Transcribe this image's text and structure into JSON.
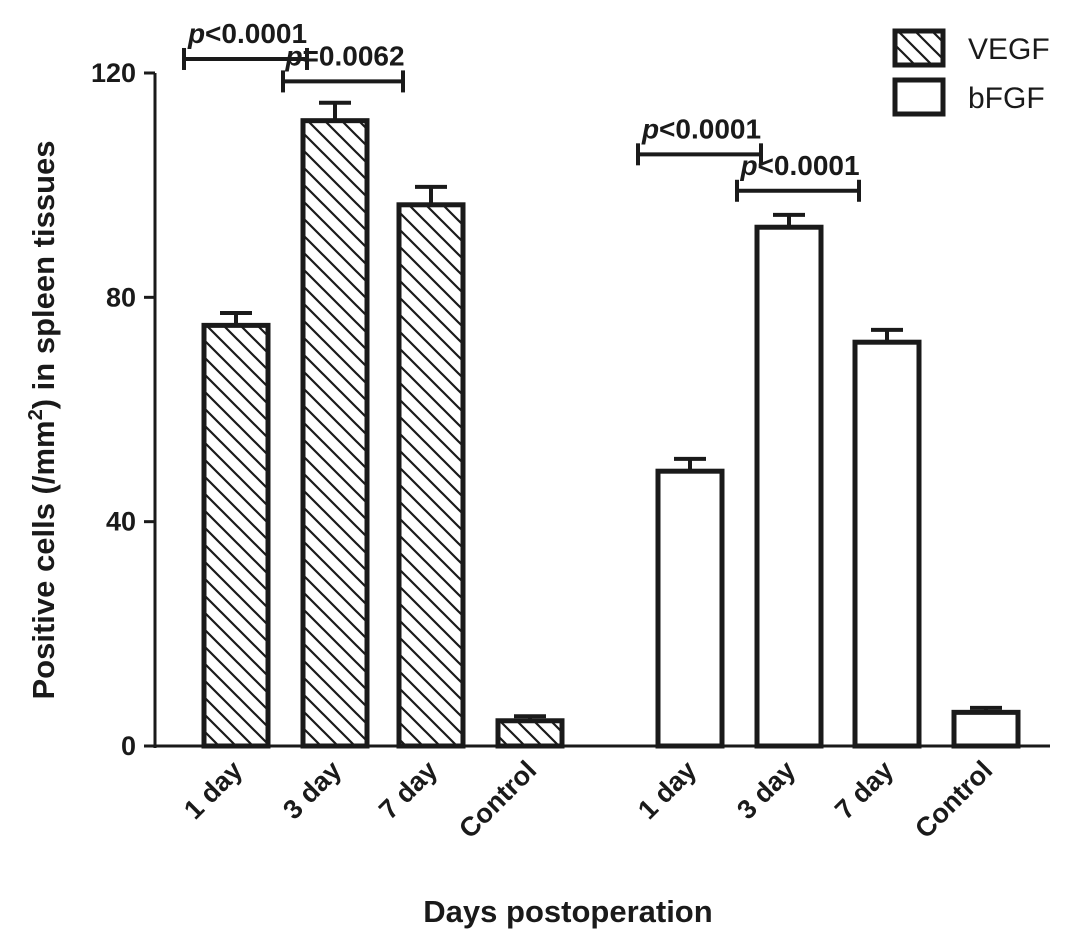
{
  "chart_data": {
    "type": "bar",
    "xlabel": "Days postoperation",
    "ylabel": {
      "before_sup": "Positive cells (/mm",
      "sup": "2",
      "after_sup": ") in spleen tissues"
    },
    "ylim": [
      0,
      120
    ],
    "yticks": [
      "0",
      "40",
      "80",
      "120"
    ],
    "ytick_values": [
      0,
      40,
      80,
      120
    ],
    "legend_position": "top-right",
    "series": [
      {
        "name": "VEGF",
        "pattern": "hatched",
        "categories": [
          "1 day",
          "3 day",
          "7 day",
          "Control"
        ],
        "values": [
          75,
          111.5,
          96.5,
          4.5
        ],
        "errors": [
          2.2,
          3.2,
          3.2,
          0.8
        ]
      },
      {
        "name": "bFGF",
        "pattern": "open",
        "categories": [
          "1 day",
          "3 day",
          "7 day",
          "Control"
        ],
        "values": [
          49,
          92.5,
          72,
          6
        ],
        "errors": [
          2.2,
          2.2,
          2.2,
          0.8
        ]
      }
    ],
    "annotations": [
      {
        "series": 0,
        "from": 0,
        "to": 1,
        "prefix": "p",
        "text": "<0.0001",
        "level": 122.5
      },
      {
        "series": 0,
        "from": 1,
        "to": 2,
        "prefix": "p",
        "text": "=0.0062",
        "level": 118.5
      },
      {
        "series": 1,
        "from": 0,
        "to": 1,
        "prefix": "p",
        "text": "<0.0001",
        "level": 105.5
      },
      {
        "series": 1,
        "from": 1,
        "to": 2,
        "prefix": "p",
        "text": "<0.0001",
        "level": 99
      }
    ],
    "colors": {
      "ink": "#1a1a1a",
      "fill": "#ffffff"
    }
  }
}
